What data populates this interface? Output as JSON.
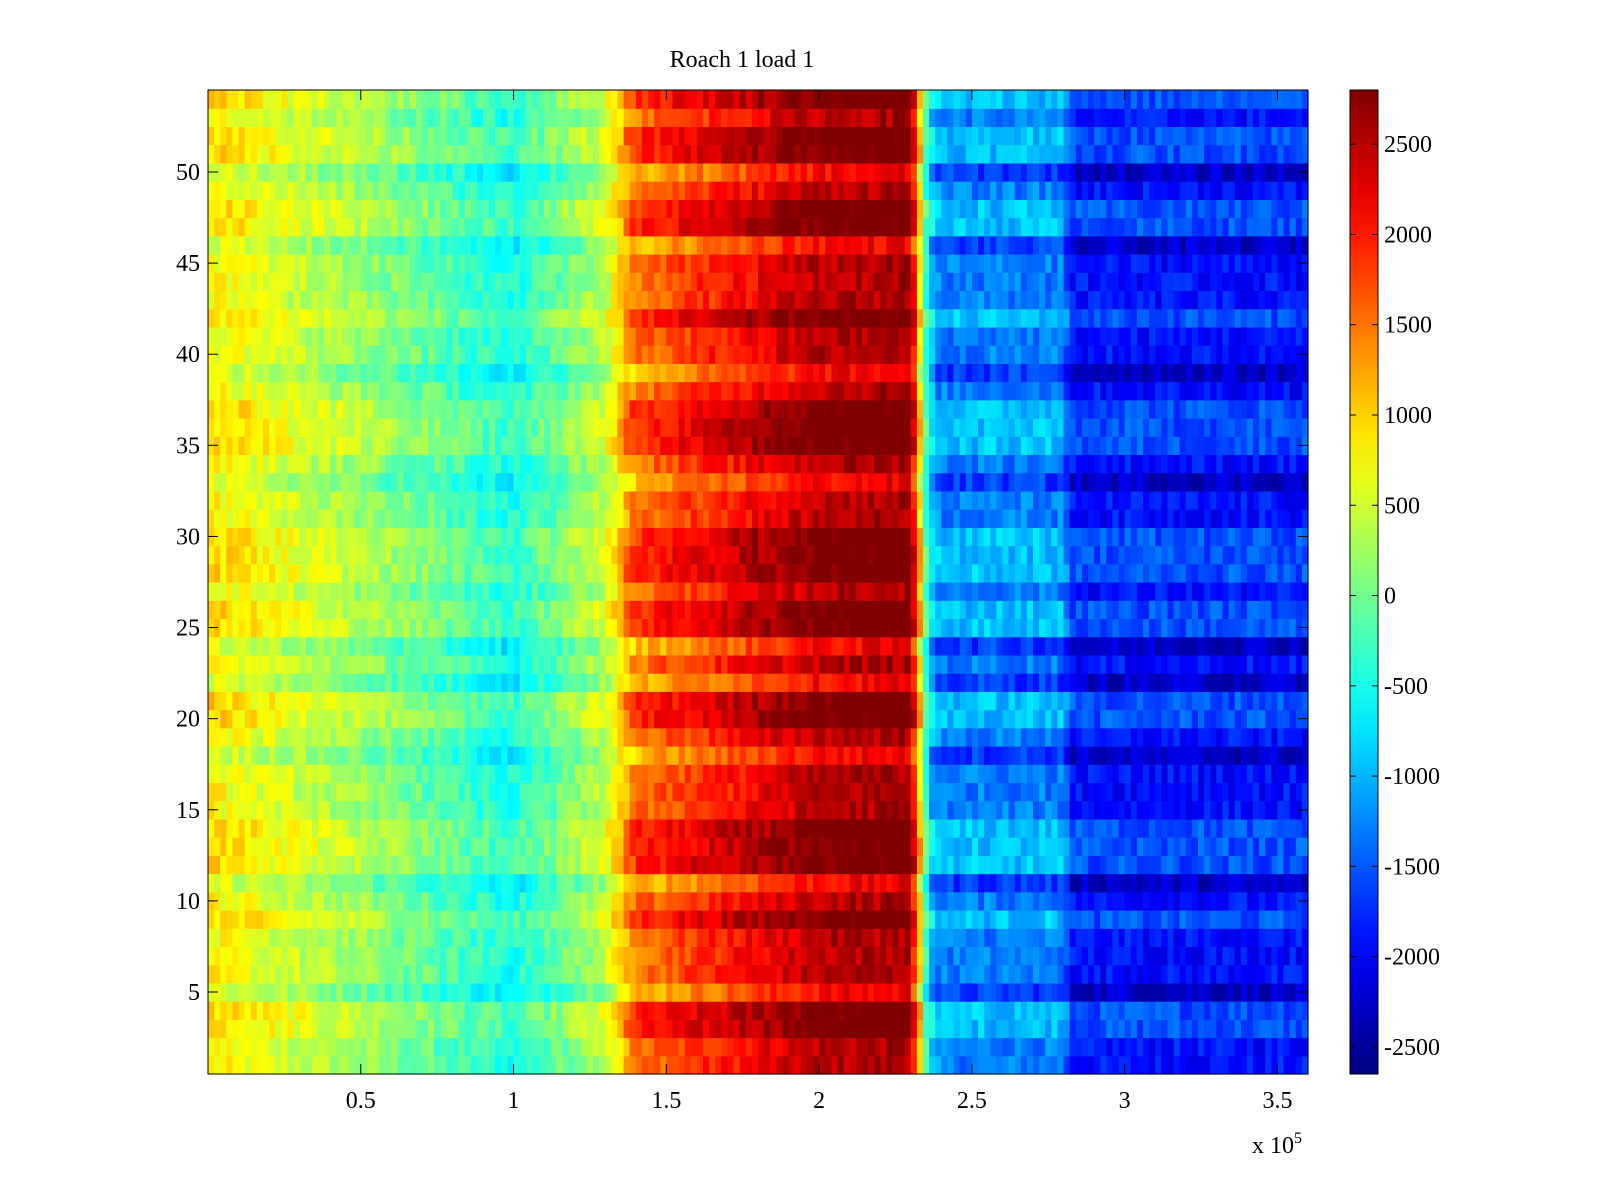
{
  "chart_data": {
    "type": "heatmap",
    "title": "Roach 1 load 1",
    "xlabel": "",
    "ylabel": "",
    "x_multiplier_label": {
      "base": "x 10",
      "exponent": "5"
    },
    "xlim": [
      0,
      3.6
    ],
    "ylim": [
      0.5,
      54.5
    ],
    "x_ticks": [
      0.5,
      1,
      1.5,
      2,
      2.5,
      3,
      3.5
    ],
    "x_tick_labels": [
      "0.5",
      "1",
      "1.5",
      "2",
      "2.5",
      "3",
      "3.5"
    ],
    "y_ticks": [
      5,
      10,
      15,
      20,
      25,
      30,
      35,
      40,
      45,
      50
    ],
    "y_tick_labels": [
      "5",
      "10",
      "15",
      "20",
      "25",
      "30",
      "35",
      "40",
      "45",
      "50"
    ],
    "rows": 54,
    "colorbar": {
      "colormap": "jet",
      "clim": [
        -2650,
        2800
      ],
      "ticks": [
        -2500,
        -2000,
        -1500,
        -1000,
        -500,
        0,
        500,
        1000,
        1500,
        2000,
        2500
      ],
      "tick_labels": [
        "-2500",
        "-2000",
        "-1500",
        "-1000",
        "-500",
        "0",
        "500",
        "1000",
        "1500",
        "2000",
        "2500"
      ]
    },
    "approx_profile": {
      "x": [
        0.0,
        0.5,
        1.0,
        1.3,
        1.4,
        1.7,
        2.0,
        2.3,
        2.36,
        2.4,
        2.8,
        2.82,
        3.6
      ],
      "mean_value": [
        800,
        200,
        -500,
        400,
        1500,
        2000,
        2500,
        2600,
        -900,
        -1300,
        -1300,
        -1900,
        -1900
      ]
    },
    "row_offsets": [
      {
        "rows": [
          3,
          4,
          9,
          12,
          13,
          14,
          20,
          21,
          25,
          26,
          28,
          29,
          30,
          35,
          36,
          37,
          42,
          47,
          48,
          51,
          52,
          54
        ],
        "offset": 400
      },
      {
        "rows": [
          5,
          11,
          18,
          22,
          24,
          33,
          39,
          46,
          50
        ],
        "offset": -400
      }
    ]
  }
}
